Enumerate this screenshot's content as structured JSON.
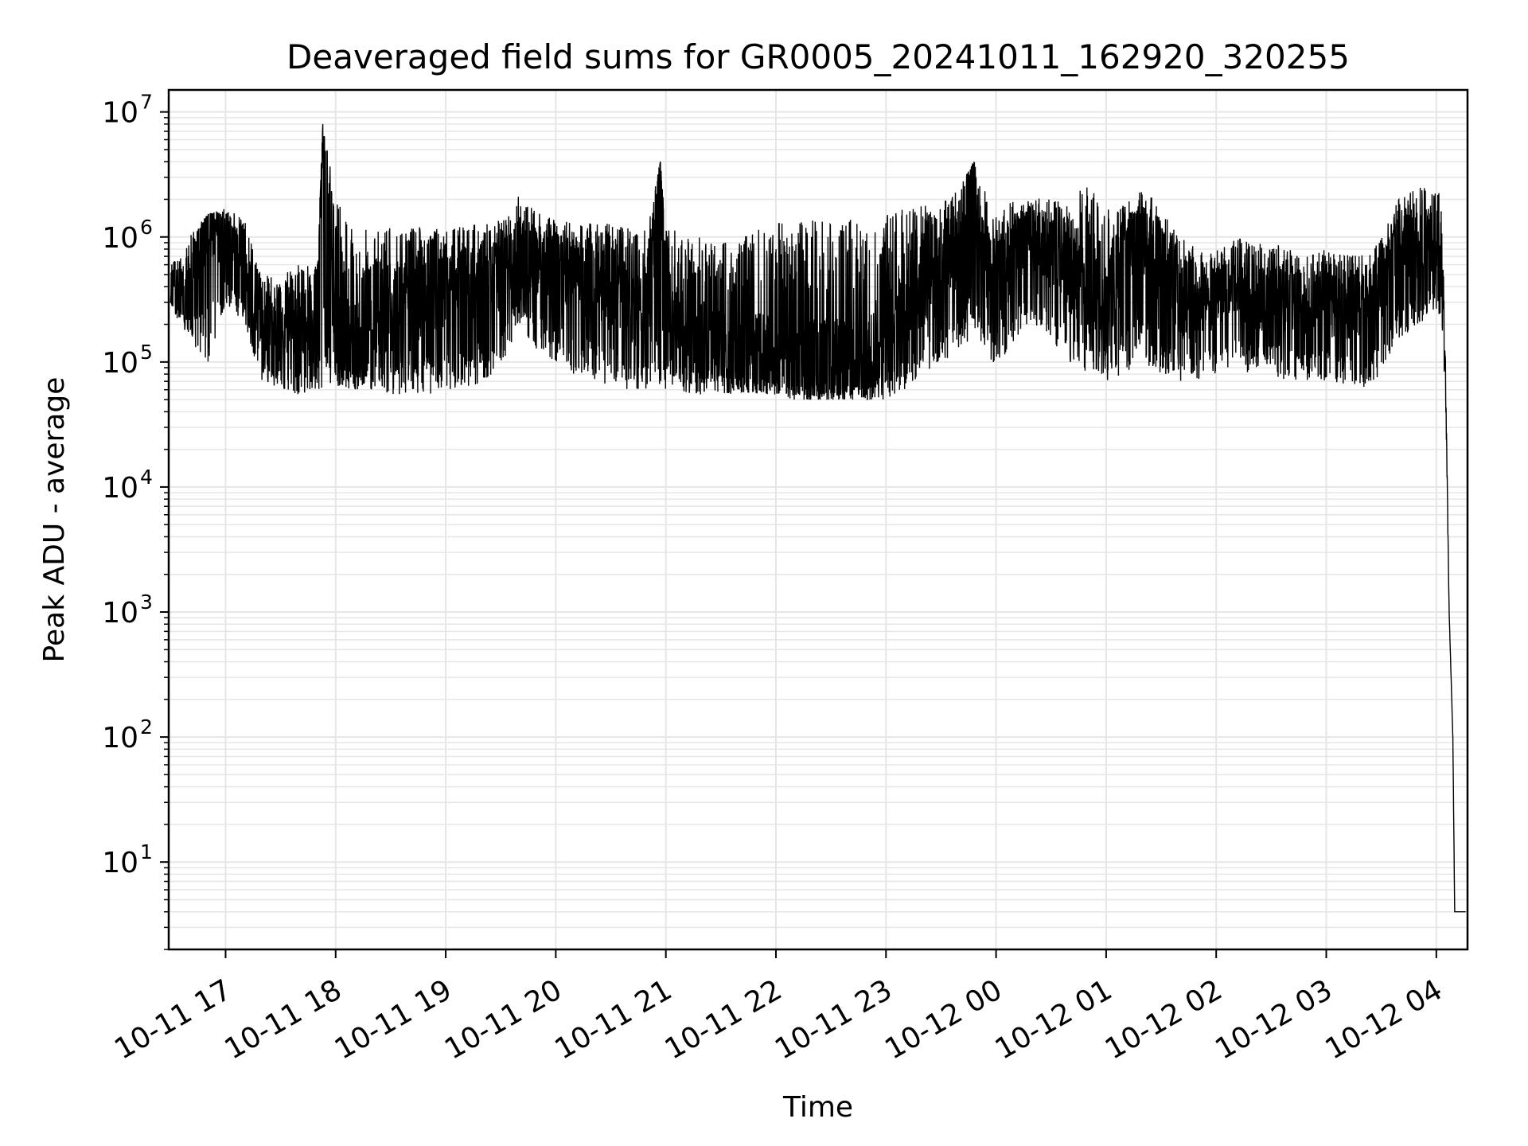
{
  "chart_data": {
    "type": "line",
    "title": "Deaveraged field sums for GR0005_20241011_162920_320255",
    "xlabel": "Time",
    "ylabel": "Peak ADU - average",
    "yscale": "log",
    "ylim": [
      2,
      15000000
    ],
    "xlim": [
      "2024-10-11 16:29",
      "2024-10-12 04:17"
    ],
    "grid": true,
    "line_color": "#000000",
    "grid_color": "#e6e6e6",
    "x_ticks": [
      "10-11 17",
      "10-11 18",
      "10-11 19",
      "10-11 20",
      "10-11 21",
      "10-11 22",
      "10-11 23",
      "10-12 00",
      "10-12 01",
      "10-12 02",
      "10-12 03",
      "10-12 04"
    ],
    "x_tick_values": [
      "2024-10-11 17:00",
      "2024-10-11 18:00",
      "2024-10-11 19:00",
      "2024-10-11 20:00",
      "2024-10-11 21:00",
      "2024-10-11 22:00",
      "2024-10-11 23:00",
      "2024-10-12 00:00",
      "2024-10-12 01:00",
      "2024-10-12 02:00",
      "2024-10-12 03:00",
      "2024-10-12 04:00"
    ],
    "y_ticks": [
      {
        "value": 10,
        "base": "10",
        "exp": "1"
      },
      {
        "value": 100,
        "base": "10",
        "exp": "2"
      },
      {
        "value": 1000,
        "base": "10",
        "exp": "3"
      },
      {
        "value": 10000,
        "base": "10",
        "exp": "4"
      },
      {
        "value": 100000,
        "base": "10",
        "exp": "5"
      },
      {
        "value": 1000000,
        "base": "10",
        "exp": "6"
      },
      {
        "value": 10000000,
        "base": "10",
        "exp": "7"
      }
    ],
    "series": [
      {
        "x": [
          "2024-10-11 16:30",
          "2024-10-11 16:40",
          "2024-10-11 16:50",
          "2024-10-11 17:00",
          "2024-10-11 17:10",
          "2024-10-11 17:20",
          "2024-10-11 17:30",
          "2024-10-11 17:40",
          "2024-10-11 17:50",
          "2024-10-11 17:53",
          "2024-10-11 18:00",
          "2024-10-11 18:10",
          "2024-10-11 18:20",
          "2024-10-11 18:30",
          "2024-10-11 18:40",
          "2024-10-11 18:50",
          "2024-10-11 19:00",
          "2024-10-11 19:10",
          "2024-10-11 19:20",
          "2024-10-11 19:30",
          "2024-10-11 19:40",
          "2024-10-11 19:50",
          "2024-10-11 20:00",
          "2024-10-11 20:10",
          "2024-10-11 20:20",
          "2024-10-11 20:30",
          "2024-10-11 20:40",
          "2024-10-11 20:50",
          "2024-10-11 20:57",
          "2024-10-11 21:00",
          "2024-10-11 21:10",
          "2024-10-11 21:20",
          "2024-10-11 21:30",
          "2024-10-11 21:40",
          "2024-10-11 21:50",
          "2024-10-11 22:00",
          "2024-10-11 22:10",
          "2024-10-11 22:20",
          "2024-10-11 22:30",
          "2024-10-11 22:40",
          "2024-10-11 22:50",
          "2024-10-11 23:00",
          "2024-10-11 23:10",
          "2024-10-11 23:20",
          "2024-10-11 23:30",
          "2024-10-11 23:40",
          "2024-10-11 23:48",
          "2024-10-11 23:50",
          "2024-10-12 00:00",
          "2024-10-12 00:10",
          "2024-10-12 00:20",
          "2024-10-12 00:30",
          "2024-10-12 00:40",
          "2024-10-12 00:50",
          "2024-10-12 01:00",
          "2024-10-12 01:10",
          "2024-10-12 01:20",
          "2024-10-12 01:30",
          "2024-10-12 01:40",
          "2024-10-12 01:50",
          "2024-10-12 02:00",
          "2024-10-12 02:10",
          "2024-10-12 02:20",
          "2024-10-12 02:30",
          "2024-10-12 02:40",
          "2024-10-12 02:50",
          "2024-10-12 03:00",
          "2024-10-12 03:10",
          "2024-10-12 03:20",
          "2024-10-12 03:30",
          "2024-10-12 03:40",
          "2024-10-12 03:50",
          "2024-10-12 04:00",
          "2024-10-12 04:03",
          "2024-10-12 04:05",
          "2024-10-12 04:07",
          "2024-10-12 04:09",
          "2024-10-12 04:10",
          "2024-10-12 04:12",
          "2024-10-12 04:14",
          "2024-10-12 04:16"
        ],
        "y": [
          450000,
          380000,
          1400000,
          900000,
          600000,
          200000,
          170000,
          200000,
          230000,
          8000000,
          150000,
          160000,
          180000,
          230000,
          250000,
          300000,
          350000,
          400000,
          450000,
          500000,
          700000,
          600000,
          550000,
          500000,
          450000,
          350000,
          300000,
          250000,
          4000000,
          200000,
          180000,
          150000,
          130000,
          120000,
          120000,
          110000,
          110000,
          100000,
          100000,
          100000,
          100000,
          200000,
          300000,
          400000,
          500000,
          700000,
          4000000,
          900000,
          300000,
          800000,
          1000000,
          700000,
          500000,
          400000,
          300000,
          700000,
          1000000,
          600000,
          300000,
          250000,
          300000,
          400000,
          300000,
          350000,
          300000,
          250000,
          300000,
          250000,
          300000,
          400000,
          1000000,
          800000,
          1000000,
          700000,
          100000,
          1000,
          100,
          4,
          4,
          4,
          4
        ],
        "low": [
          280000,
          150000,
          90000,
          300000,
          200000,
          70000,
          60000,
          55000,
          60000,
          60000,
          65000,
          60000,
          60000,
          55000,
          55000,
          55000,
          60000,
          60000,
          70000,
          90000,
          200000,
          120000,
          100000,
          80000,
          70000,
          65000,
          60000,
          60000,
          60000,
          55000,
          55000,
          55000,
          55000,
          55000,
          55000,
          55000,
          50000,
          50000,
          50000,
          50000,
          50000,
          50000,
          60000,
          80000,
          100000,
          120000,
          150000,
          150000,
          90000,
          150000,
          200000,
          150000,
          100000,
          80000,
          70000,
          80000,
          100000,
          80000,
          70000,
          70000,
          80000,
          90000,
          80000,
          80000,
          70000,
          70000,
          70000,
          65000,
          60000,
          80000,
          150000,
          200000,
          250000,
          200000,
          50000,
          1000,
          100,
          4,
          4,
          4,
          4
        ],
        "high": [
          600000,
          1000000,
          1500000,
          1700000,
          1400000,
          500000,
          500000,
          600000,
          600000,
          8000000,
          2000000,
          1200000,
          1200000,
          1200000,
          1200000,
          1200000,
          1200000,
          1200000,
          1300000,
          1400000,
          2400000,
          1600000,
          1400000,
          1300000,
          1300000,
          1300000,
          1200000,
          1200000,
          4000000,
          1200000,
          1100000,
          1000000,
          900000,
          1000000,
          1200000,
          1400000,
          1400000,
          1400000,
          1300000,
          1400000,
          1400000,
          1500000,
          1700000,
          1800000,
          1900000,
          2500000,
          4000000,
          3500000,
          1500000,
          2000000,
          2200000,
          2000000,
          1800000,
          2900000,
          1700000,
          1800000,
          2400000,
          1800000,
          1000000,
          800000,
          800000,
          1000000,
          900000,
          900000,
          800000,
          700000,
          800000,
          700000,
          800000,
          1000000,
          2100000,
          2500000,
          2600000,
          2000000,
          100000,
          1000,
          100,
          4,
          4,
          4,
          4
        ]
      }
    ]
  }
}
